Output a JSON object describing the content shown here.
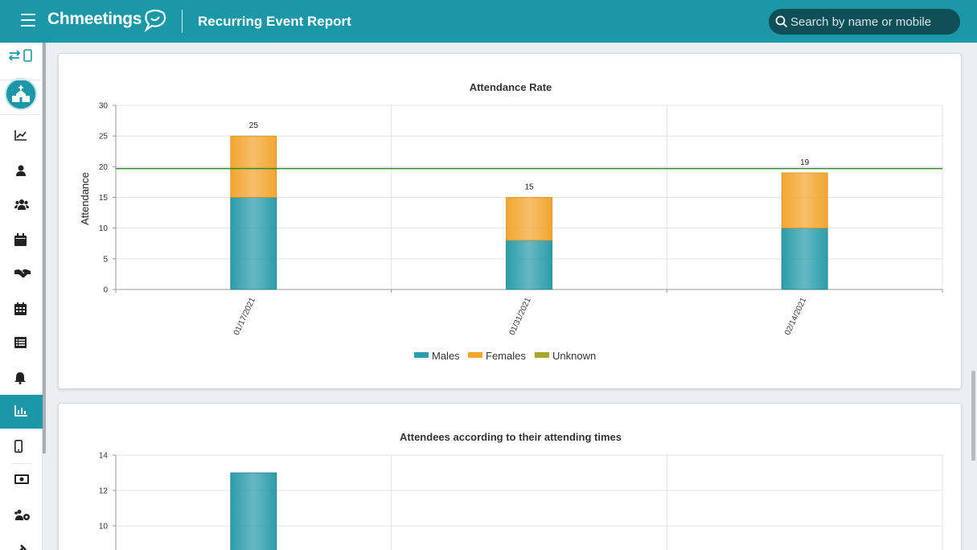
{
  "header": {
    "app_name": "Chmeetings",
    "page_title": "Recurring Event Report",
    "search_placeholder": "Search by name or mobile"
  },
  "sidebar": {
    "items": [
      {
        "name": "dashboard",
        "icon": "line-chart-icon"
      },
      {
        "name": "person",
        "icon": "person-icon"
      },
      {
        "name": "groups",
        "icon": "group-icon"
      },
      {
        "name": "events",
        "icon": "calendar-icon"
      },
      {
        "name": "volunteers",
        "icon": "handshake-icon"
      },
      {
        "name": "calendar",
        "icon": "calendar-grid-icon"
      },
      {
        "name": "forms",
        "icon": "list-icon"
      },
      {
        "name": "notifications",
        "icon": "bell-icon"
      },
      {
        "name": "reports",
        "icon": "bar-chart-icon",
        "active": true
      },
      {
        "name": "mobile",
        "icon": "mobile-icon"
      },
      {
        "name": "contributions",
        "icon": "money-icon"
      },
      {
        "name": "settings",
        "icon": "people-gear-icon"
      },
      {
        "name": "tools",
        "icon": "tools-icon"
      }
    ]
  },
  "colors": {
    "brand": "#1b97a8",
    "males": "#2b9daa",
    "females": "#f2a630",
    "unknown": "#a8a531",
    "average_line": "#2e8b2e"
  },
  "chart_data": [
    {
      "type": "bar",
      "stacked": true,
      "title": "Attendance Rate",
      "ylabel": "Attendance",
      "xlabel": "",
      "categories": [
        "01/17/2021",
        "01/31/2021",
        "02/14/2021"
      ],
      "series": [
        {
          "name": "Males",
          "values": [
            15,
            8,
            10
          ]
        },
        {
          "name": "Females",
          "values": [
            10,
            7,
            9
          ]
        },
        {
          "name": "Unknown",
          "values": [
            0,
            0,
            0
          ]
        }
      ],
      "totals": [
        "25",
        "15",
        "19"
      ],
      "average_line": 19.7,
      "ylim": [
        0,
        30
      ],
      "yticks": [
        "0",
        "5",
        "10",
        "15",
        "20",
        "25",
        "30"
      ],
      "grid": true,
      "legend": "bottom"
    },
    {
      "type": "bar",
      "title": "Attendees according to their attending times",
      "categories": [
        "",
        "",
        ""
      ],
      "series": [
        {
          "values": [
            13,
            null,
            null
          ]
        }
      ],
      "ylim": [
        0,
        14
      ],
      "yticks": [
        "10",
        "12",
        "14"
      ],
      "grid": true
    }
  ]
}
